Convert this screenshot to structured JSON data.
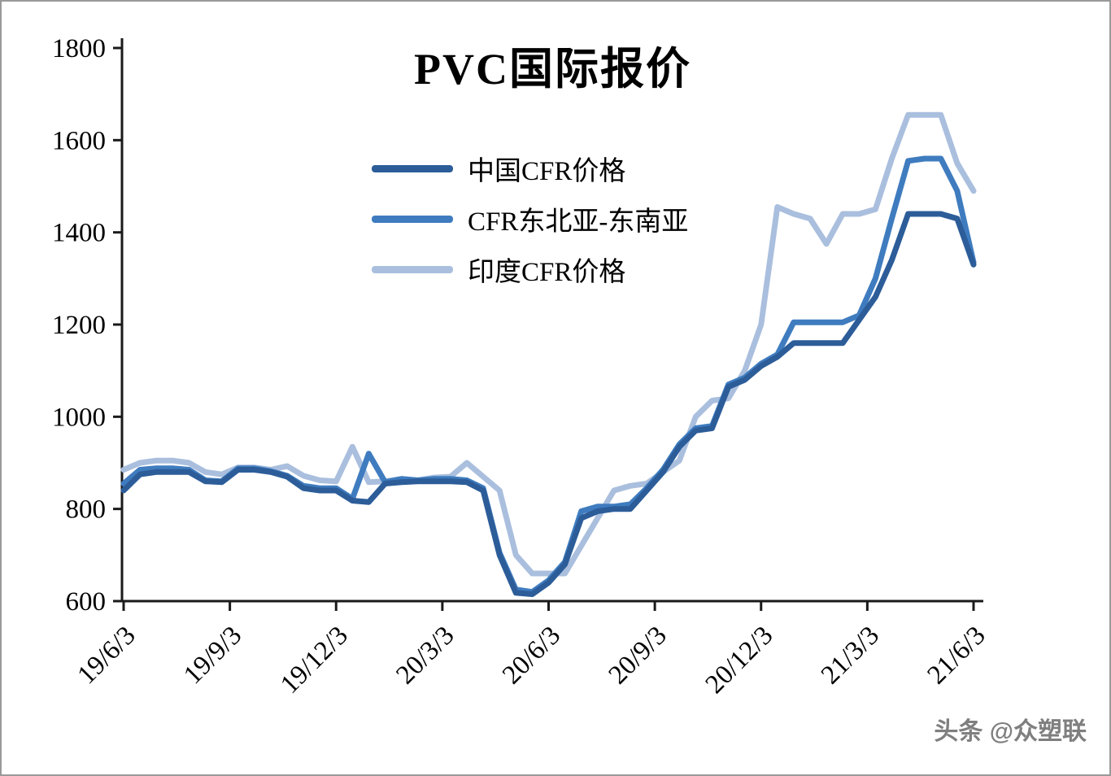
{
  "watermark": "头条 @众塑联",
  "chart_data": {
    "type": "line",
    "title": "PVC国际报价",
    "xlabel": "",
    "ylabel": "",
    "ylim": [
      600,
      1800
    ],
    "yticks": [
      600,
      800,
      1000,
      1200,
      1400,
      1600,
      1800
    ],
    "grid": false,
    "legend_position": "inside-top-center",
    "x_tick_labels": [
      "19/6/3",
      "19/9/3",
      "19/12/3",
      "20/3/3",
      "20/6/3",
      "20/9/3",
      "20/12/3",
      "21/3/3",
      "21/6/3"
    ],
    "series": [
      {
        "name": "中国CFR价格",
        "color": "#2c5d99",
        "values": [
          840,
          875,
          880,
          880,
          880,
          860,
          858,
          885,
          885,
          880,
          870,
          845,
          840,
          840,
          818,
          815,
          855,
          858,
          860,
          860,
          860,
          858,
          840,
          700,
          618,
          615,
          640,
          680,
          780,
          795,
          800,
          800,
          840,
          880,
          935,
          970,
          975,
          1065,
          1080,
          1110,
          1130,
          1160,
          1160,
          1160,
          1160,
          1210,
          1260,
          1340,
          1440,
          1440,
          1440,
          1430,
          1330
        ]
      },
      {
        "name": "CFR东北亚-东南亚",
        "color": "#3f7cbf",
        "values": [
          855,
          885,
          888,
          888,
          885,
          862,
          860,
          888,
          888,
          882,
          872,
          850,
          845,
          845,
          822,
          920,
          858,
          865,
          862,
          865,
          865,
          862,
          845,
          705,
          625,
          620,
          645,
          685,
          795,
          805,
          805,
          810,
          845,
          885,
          940,
          975,
          980,
          1070,
          1085,
          1115,
          1135,
          1205,
          1205,
          1205,
          1205,
          1220,
          1300,
          1430,
          1555,
          1560,
          1560,
          1490,
          1335
        ]
      },
      {
        "name": "印度CFR价格",
        "color": "#aabfde",
        "values": [
          885,
          900,
          905,
          905,
          900,
          880,
          875,
          890,
          890,
          885,
          893,
          872,
          862,
          860,
          935,
          858,
          860,
          865,
          862,
          868,
          870,
          900,
          870,
          840,
          700,
          660,
          660,
          660,
          720,
          780,
          840,
          850,
          855,
          880,
          905,
          1000,
          1035,
          1040,
          1100,
          1200,
          1455,
          1440,
          1430,
          1375,
          1440,
          1440,
          1450,
          1560,
          1655,
          1655,
          1655,
          1550,
          1490
        ]
      }
    ]
  }
}
